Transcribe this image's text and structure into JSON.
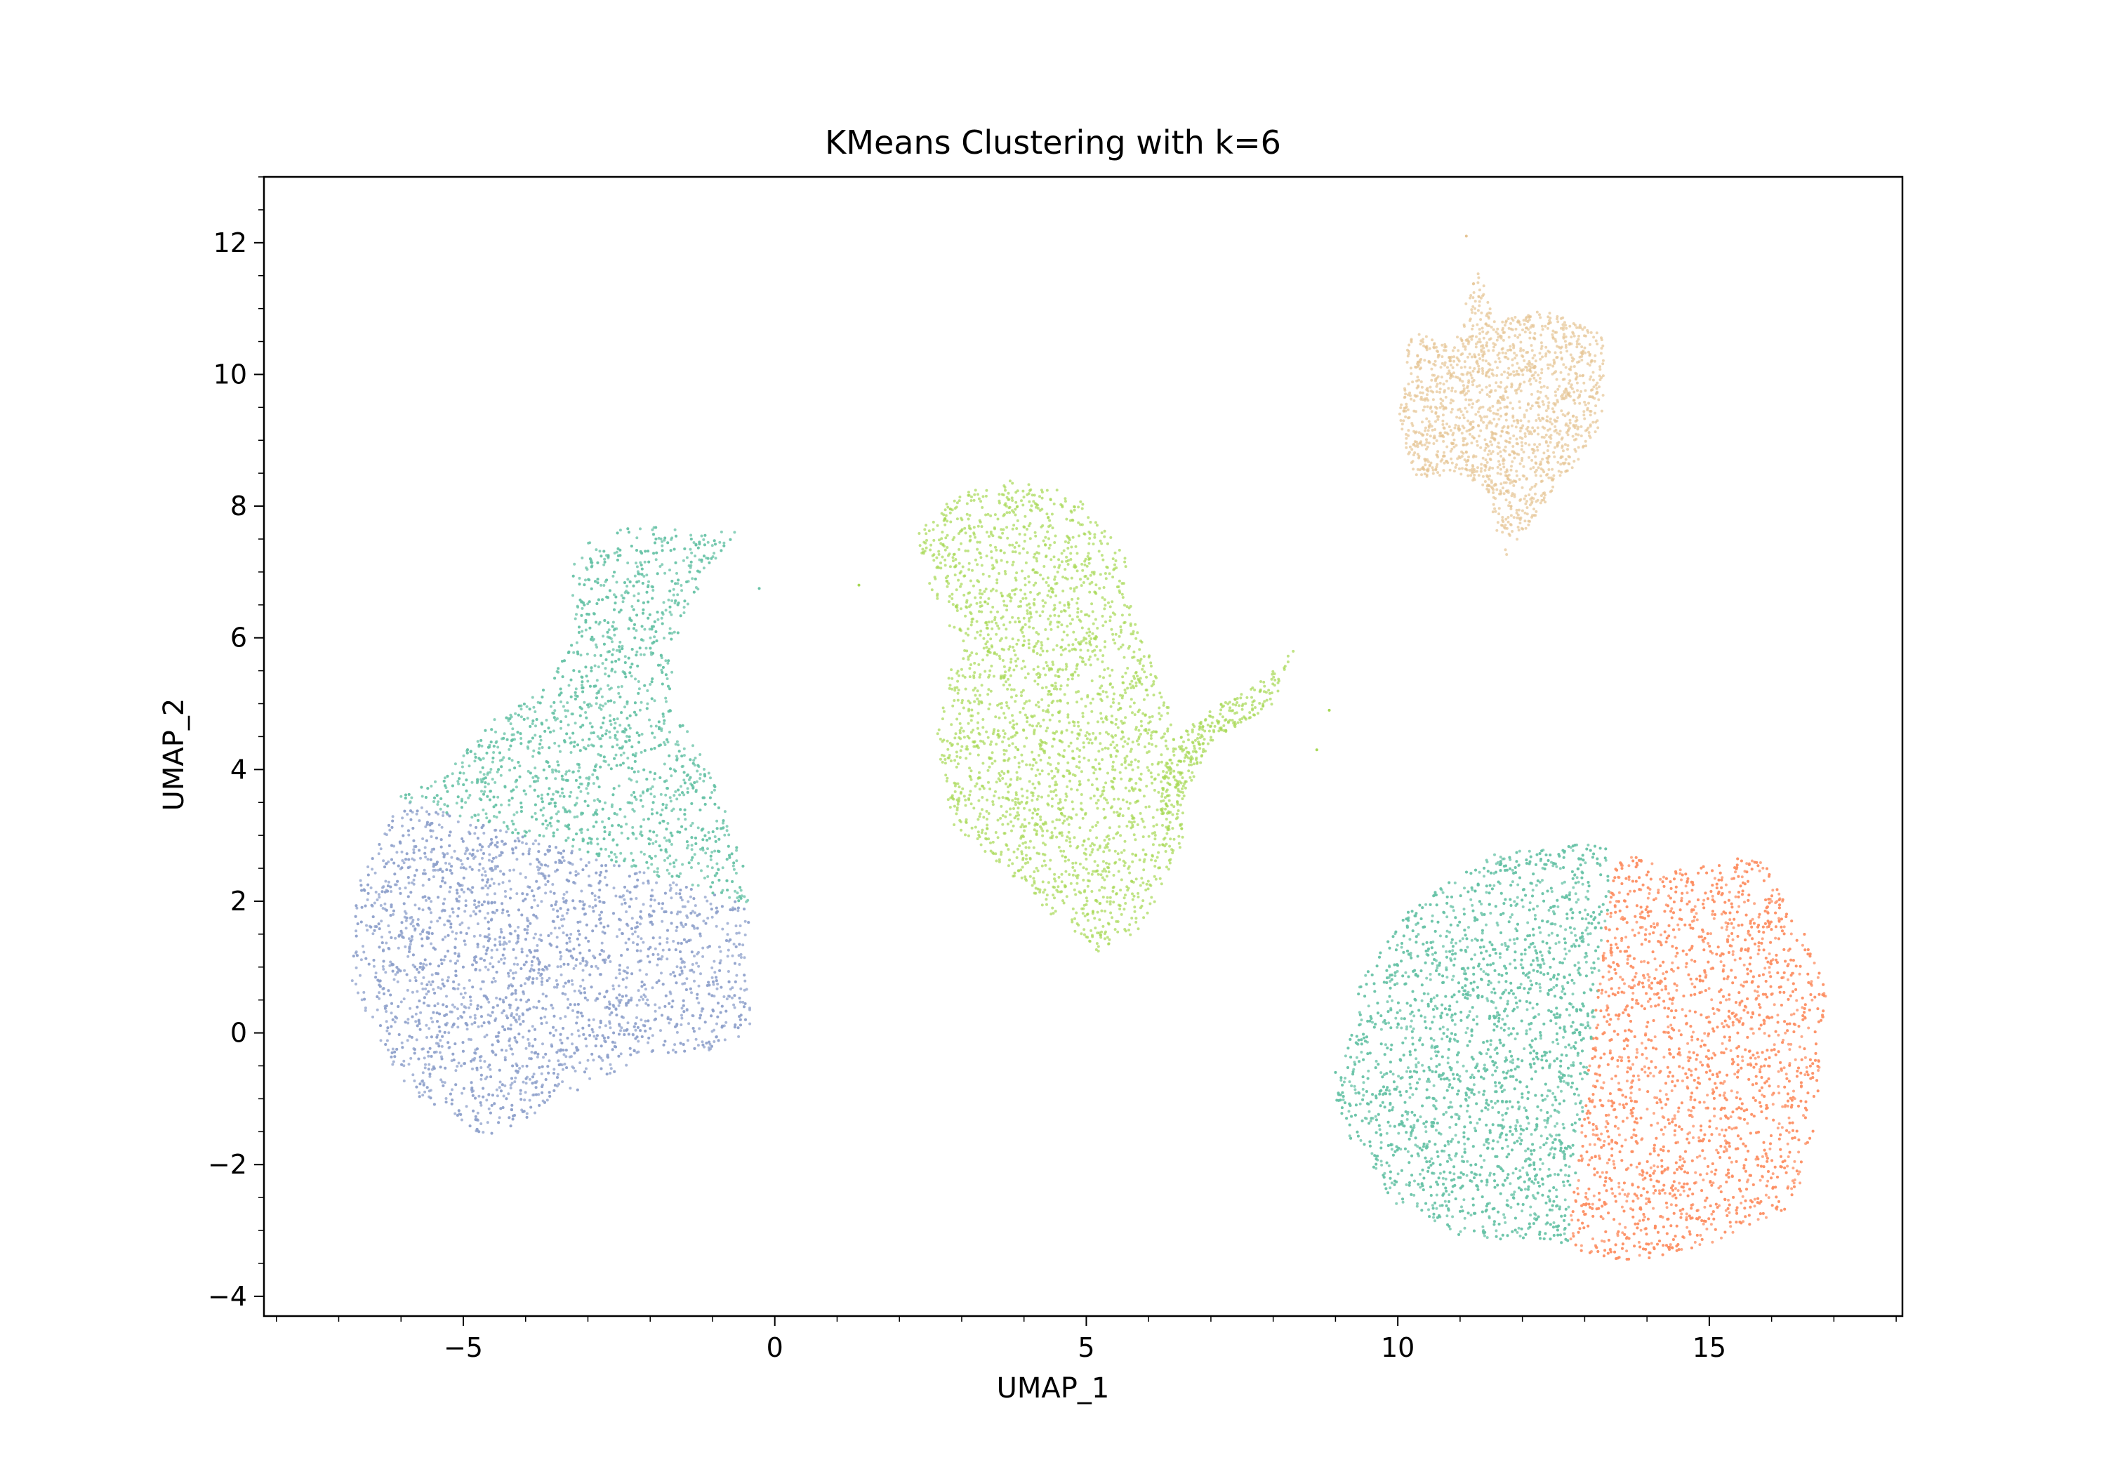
{
  "chart_data": {
    "type": "scatter",
    "title": "KMeans Clustering with k=6",
    "xlabel": "UMAP_1",
    "ylabel": "UMAP_2",
    "xlim": [
      -8.2,
      18.1
    ],
    "ylim": [
      -4.3,
      13.0
    ],
    "xticks": [
      -5,
      0,
      5,
      10,
      15
    ],
    "yticks": [
      -4,
      -2,
      0,
      2,
      4,
      6,
      8,
      10,
      12
    ],
    "xtick_labels": [
      "−5",
      "0",
      "5",
      "10",
      "15"
    ],
    "ytick_labels": [
      "−4",
      "−2",
      "0",
      "2",
      "4",
      "6",
      "8",
      "10",
      "12"
    ],
    "minor_ticks": true,
    "grid": false,
    "legend": "none",
    "marker_size": "small",
    "colors": {
      "cluster_a": "#66c2a5",
      "cluster_b": "#fc8d62",
      "cluster_c": "#8da0cb",
      "cluster_d": "#a6d854",
      "cluster_e": "#e5c494"
    },
    "clusters": [
      {
        "color": "#8da0cb",
        "region": "left-lower",
        "x_range": [
          -6.8,
          -0.3
        ],
        "y_range": [
          -1.6,
          3.6
        ],
        "center": [
          -4.0,
          0.8
        ]
      },
      {
        "color": "#66c2a5",
        "region": "left-upper",
        "x_range": [
          -6.2,
          -0.5
        ],
        "y_range": [
          1.9,
          7.8
        ],
        "center": [
          -2.8,
          4.5
        ]
      },
      {
        "color": "#a6d854",
        "region": "center",
        "x_range": [
          2.2,
          8.4
        ],
        "y_range": [
          1.2,
          8.4
        ],
        "center": [
          4.6,
          5.2
        ]
      },
      {
        "color": "#e5c494",
        "region": "upper-right",
        "x_range": [
          10.0,
          13.4
        ],
        "y_range": [
          6.8,
          12.2
        ],
        "center": [
          11.6,
          9.6
        ]
      },
      {
        "color": "#66c2a5",
        "region": "lower-right-left",
        "x_range": [
          8.9,
          13.6
        ],
        "y_range": [
          -3.1,
          3.0
        ],
        "center": [
          11.5,
          0.0
        ]
      },
      {
        "color": "#fc8d62",
        "region": "lower-right-right",
        "x_range": [
          12.6,
          16.9
        ],
        "y_range": [
          -3.5,
          2.7
        ],
        "center": [
          14.9,
          -0.5
        ]
      }
    ]
  }
}
